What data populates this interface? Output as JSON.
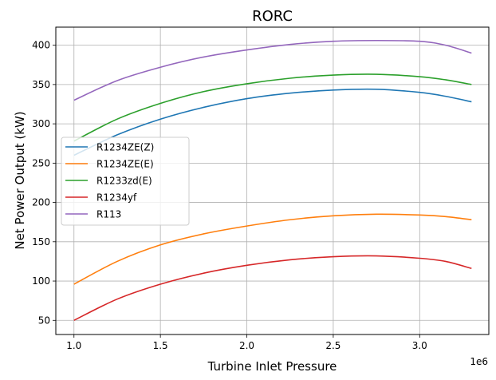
{
  "chart_data": {
    "type": "line",
    "title": "RORC",
    "xlabel": "Turbine Inlet Pressure",
    "ylabel": "Net Power Output (kW)",
    "x_offset_label": "1e6",
    "xlim": [
      0.895,
      3.4
    ],
    "ylim": [
      32,
      423
    ],
    "x_ticks": [
      1.0,
      1.5,
      2.0,
      2.5,
      3.0
    ],
    "x_tick_labels": [
      "1.0",
      "1.5",
      "2.0",
      "2.5",
      "3.0"
    ],
    "y_ticks": [
      50,
      100,
      150,
      200,
      250,
      300,
      350,
      400
    ],
    "y_tick_labels": [
      "50",
      "100",
      "150",
      "200",
      "250",
      "300",
      "350",
      "400"
    ],
    "grid": true,
    "legend_position": "center-left",
    "x": [
      1.0,
      1.25,
      1.5,
      1.75,
      2.0,
      2.25,
      2.5,
      2.75,
      3.0,
      3.15,
      3.3
    ],
    "series": [
      {
        "name": "R1234ZE(Z)",
        "color": "#1f77b4",
        "values": [
          260,
          286,
          306,
          321,
          332,
          339,
          343,
          344,
          340,
          335,
          328
        ]
      },
      {
        "name": "R1234ZE(E)",
        "color": "#ff7f0e",
        "values": [
          96,
          125,
          146,
          160,
          170,
          178,
          183,
          185,
          184,
          182,
          178
        ]
      },
      {
        "name": "R1233zd(E)",
        "color": "#2ca02c",
        "values": [
          278,
          306,
          326,
          341,
          351,
          358,
          362,
          363,
          360,
          356,
          350
        ]
      },
      {
        "name": "R1234yf",
        "color": "#d62728",
        "values": [
          50,
          77,
          96,
          110,
          120,
          127,
          131,
          132,
          129,
          125,
          116
        ]
      },
      {
        "name": "R113",
        "color": "#9467bd",
        "values": [
          330,
          355,
          372,
          385,
          394,
          401,
          405,
          406,
          405,
          400,
          390
        ]
      }
    ]
  }
}
